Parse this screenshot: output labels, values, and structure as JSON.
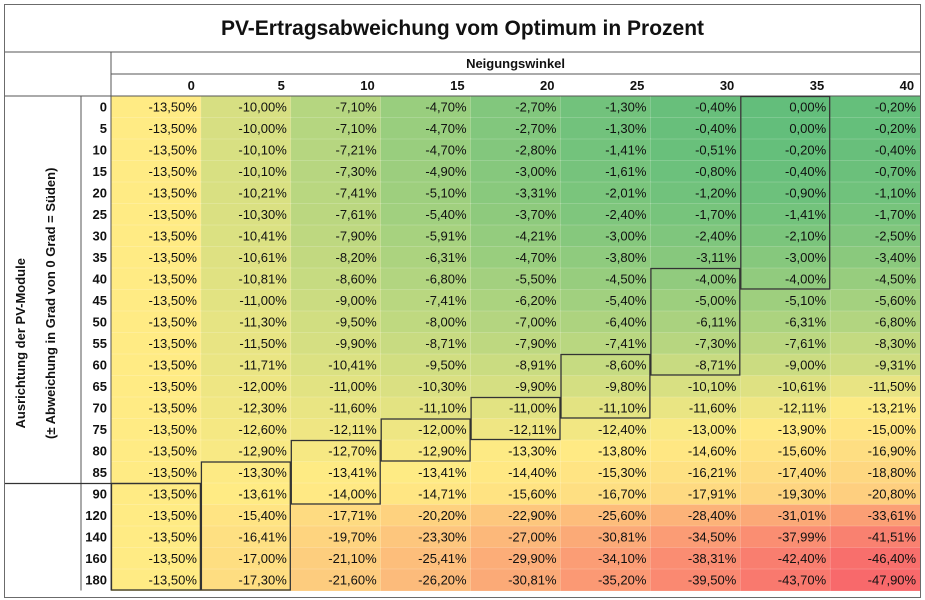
{
  "chart_data": {
    "type": "heatmap",
    "title": "PV-Ertragsabweichung vom Optimum in Prozent",
    "xlabel": "Neigungswinkel",
    "ylabel_line1": "Ausrichtung der PV-Module",
    "ylabel_line2": "(± Abweichung in Grad von 0 Grad = Süden)",
    "x": [
      "0",
      "5",
      "10",
      "15",
      "20",
      "25",
      "30",
      "35",
      "40"
    ],
    "y": [
      "0",
      "5",
      "10",
      "15",
      "20",
      "25",
      "30",
      "35",
      "40",
      "45",
      "50",
      "55",
      "60",
      "65",
      "70",
      "75",
      "80",
      "85",
      "90",
      "120",
      "140",
      "160",
      "180"
    ],
    "values": [
      [
        -13.5,
        -10.0,
        -7.1,
        -4.7,
        -2.7,
        -1.3,
        -0.4,
        0.0,
        -0.2
      ],
      [
        -13.5,
        -10.0,
        -7.1,
        -4.7,
        -2.7,
        -1.3,
        -0.4,
        0.0,
        -0.2
      ],
      [
        -13.5,
        -10.1,
        -7.21,
        -4.7,
        -2.8,
        -1.41,
        -0.51,
        -0.2,
        -0.4
      ],
      [
        -13.5,
        -10.1,
        -7.3,
        -4.9,
        -3.0,
        -1.61,
        -0.8,
        -0.4,
        -0.7
      ],
      [
        -13.5,
        -10.21,
        -7.41,
        -5.1,
        -3.31,
        -2.01,
        -1.2,
        -0.9,
        -1.1
      ],
      [
        -13.5,
        -10.3,
        -7.61,
        -5.4,
        -3.7,
        -2.4,
        -1.7,
        -1.41,
        -1.7
      ],
      [
        -13.5,
        -10.41,
        -7.9,
        -5.91,
        -4.21,
        -3.0,
        -2.4,
        -2.1,
        -2.5
      ],
      [
        -13.5,
        -10.61,
        -8.2,
        -6.31,
        -4.7,
        -3.8,
        -3.11,
        -3.0,
        -3.4
      ],
      [
        -13.5,
        -10.81,
        -8.6,
        -6.8,
        -5.5,
        -4.5,
        -4.0,
        -4.0,
        -4.5
      ],
      [
        -13.5,
        -11.0,
        -9.0,
        -7.41,
        -6.2,
        -5.4,
        -5.0,
        -5.1,
        -5.6
      ],
      [
        -13.5,
        -11.3,
        -9.5,
        -8.0,
        -7.0,
        -6.4,
        -6.11,
        -6.31,
        -6.8
      ],
      [
        -13.5,
        -11.5,
        -9.9,
        -8.71,
        -7.9,
        -7.41,
        -7.3,
        -7.61,
        -8.3
      ],
      [
        -13.5,
        -11.71,
        -10.41,
        -9.5,
        -8.91,
        -8.6,
        -8.71,
        -9.0,
        -9.31
      ],
      [
        -13.5,
        -12.0,
        -11.0,
        -10.3,
        -9.9,
        -9.8,
        -10.1,
        -10.61,
        -11.5
      ],
      [
        -13.5,
        -12.3,
        -11.6,
        -11.1,
        -11.0,
        -11.1,
        -11.6,
        -12.11,
        -13.21
      ],
      [
        -13.5,
        -12.6,
        -12.11,
        -12.0,
        -12.11,
        -12.4,
        -13.0,
        -13.9,
        -15.0
      ],
      [
        -13.5,
        -12.9,
        -12.7,
        -12.9,
        -13.3,
        -13.8,
        -14.6,
        -15.6,
        -16.9
      ],
      [
        -13.5,
        -13.3,
        -13.41,
        -13.41,
        -14.4,
        -15.3,
        -16.21,
        -17.4,
        -18.8
      ],
      [
        -13.5,
        -13.61,
        -14.0,
        -14.71,
        -15.6,
        -16.7,
        -17.91,
        -19.3,
        -20.8
      ],
      [
        -13.5,
        -15.4,
        -17.71,
        -20.2,
        -22.9,
        -25.6,
        -28.4,
        -31.01,
        -33.61
      ],
      [
        -13.5,
        -16.41,
        -19.7,
        -23.3,
        -27.0,
        -30.81,
        -34.5,
        -37.99,
        -41.51
      ],
      [
        -13.5,
        -17.0,
        -21.1,
        -25.41,
        -29.9,
        -34.1,
        -38.31,
        -42.4,
        -46.4
      ],
      [
        -13.5,
        -17.3,
        -21.6,
        -26.2,
        -30.81,
        -35.2,
        -39.5,
        -43.7,
        -47.9
      ]
    ],
    "value_format": "percent-2-decimals-comma",
    "color_scale": {
      "best": "#63be7b",
      "mid": "#ffeb84",
      "worst": "#f8696b"
    },
    "highlight_band_color": "#333333",
    "grid": true
  }
}
